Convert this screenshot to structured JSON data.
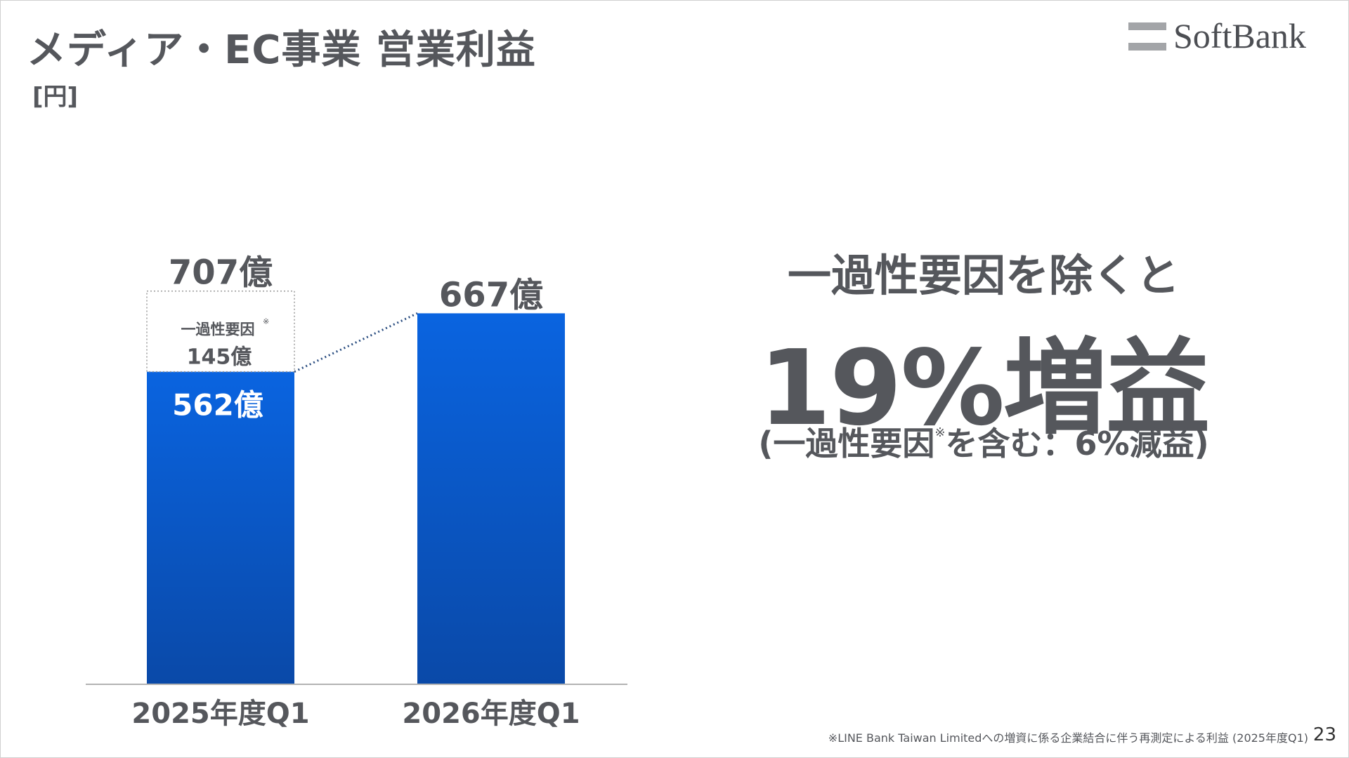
{
  "header": {
    "title": "メディア・EC事業 営業利益",
    "unit": "[円]"
  },
  "logo": {
    "text": "SoftBank"
  },
  "chart_data": {
    "type": "bar",
    "categories": [
      "2025年度Q1",
      "2026年度Q1"
    ],
    "series": [
      {
        "values": [
          562,
          667
        ]
      },
      {
        "values": [
          145,
          0
        ]
      }
    ],
    "totals": [
      707,
      667
    ],
    "value_labels": [
      "562億",
      "667億"
    ],
    "total_labels": [
      "707億",
      ""
    ],
    "one_time_label": "一過性要因",
    "one_time_value_label": "145億",
    "footnote_mark": "※",
    "ylim": [
      0,
      800
    ],
    "bar_color": "#0a5bd6",
    "one_time_fill": "#ffffff",
    "connector": "dotted"
  },
  "message": {
    "line1": "一過性要因を除くと",
    "line2": "19%増益",
    "line3_pre": "(一過性要因",
    "line3_mark": "※",
    "line3_post": "を含む：6%減益)"
  },
  "footer": {
    "footnote": "※LINE Bank Taiwan Limitedへの増資に係る企業結合に伴う再測定による利益 (2025年度Q1)",
    "page_number": "23"
  },
  "colors": {
    "text": "#55575c",
    "bar_top": "#0a64e0",
    "bar_bottom": "#0a49a8",
    "axis": "#b3b3b3"
  }
}
